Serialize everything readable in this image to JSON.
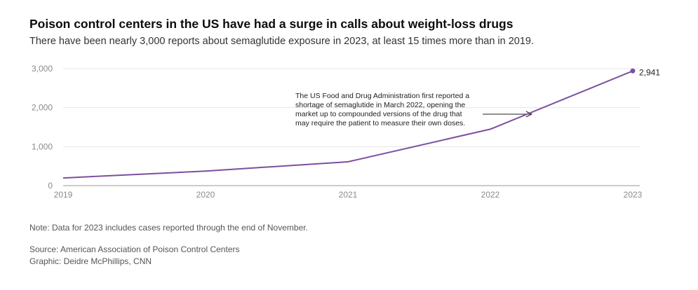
{
  "header": {
    "title": "Poison control centers in the US have had a surge in calls about weight-loss drugs",
    "subtitle": "There have been nearly 3,000 reports about semaglutide exposure in 2023, at least 15 times more than in 2019."
  },
  "chart_data": {
    "type": "line",
    "x": [
      "2019",
      "2020",
      "2021",
      "2022",
      "2023"
    ],
    "series": [
      {
        "values": [
          196,
          373,
          611,
          1448,
          2941
        ]
      }
    ],
    "y_ticks": [
      "3,000",
      "2,000",
      "1,000",
      "0"
    ],
    "ylim": [
      0,
      3000
    ],
    "grid": true,
    "end_value_label": "2,941",
    "annotation": {
      "lines": [
        "The US Food and Drug Administration first reported a",
        "shortage of semaglutide in March 2022, opening the",
        "market up to compounded versions of the drug that",
        "may require the patient to measure their own doses."
      ],
      "x": 2022.3
    },
    "colors": {
      "line": "#7b4fa0",
      "grid": "#e6e6e6",
      "axis": "#9a9a9a"
    }
  },
  "footer": {
    "note": "Note: Data for 2023 includes cases reported through the end of November.",
    "source": "Source: American Association of Poison Control Centers",
    "credit": "Graphic: Deidre McPhillips, CNN"
  }
}
